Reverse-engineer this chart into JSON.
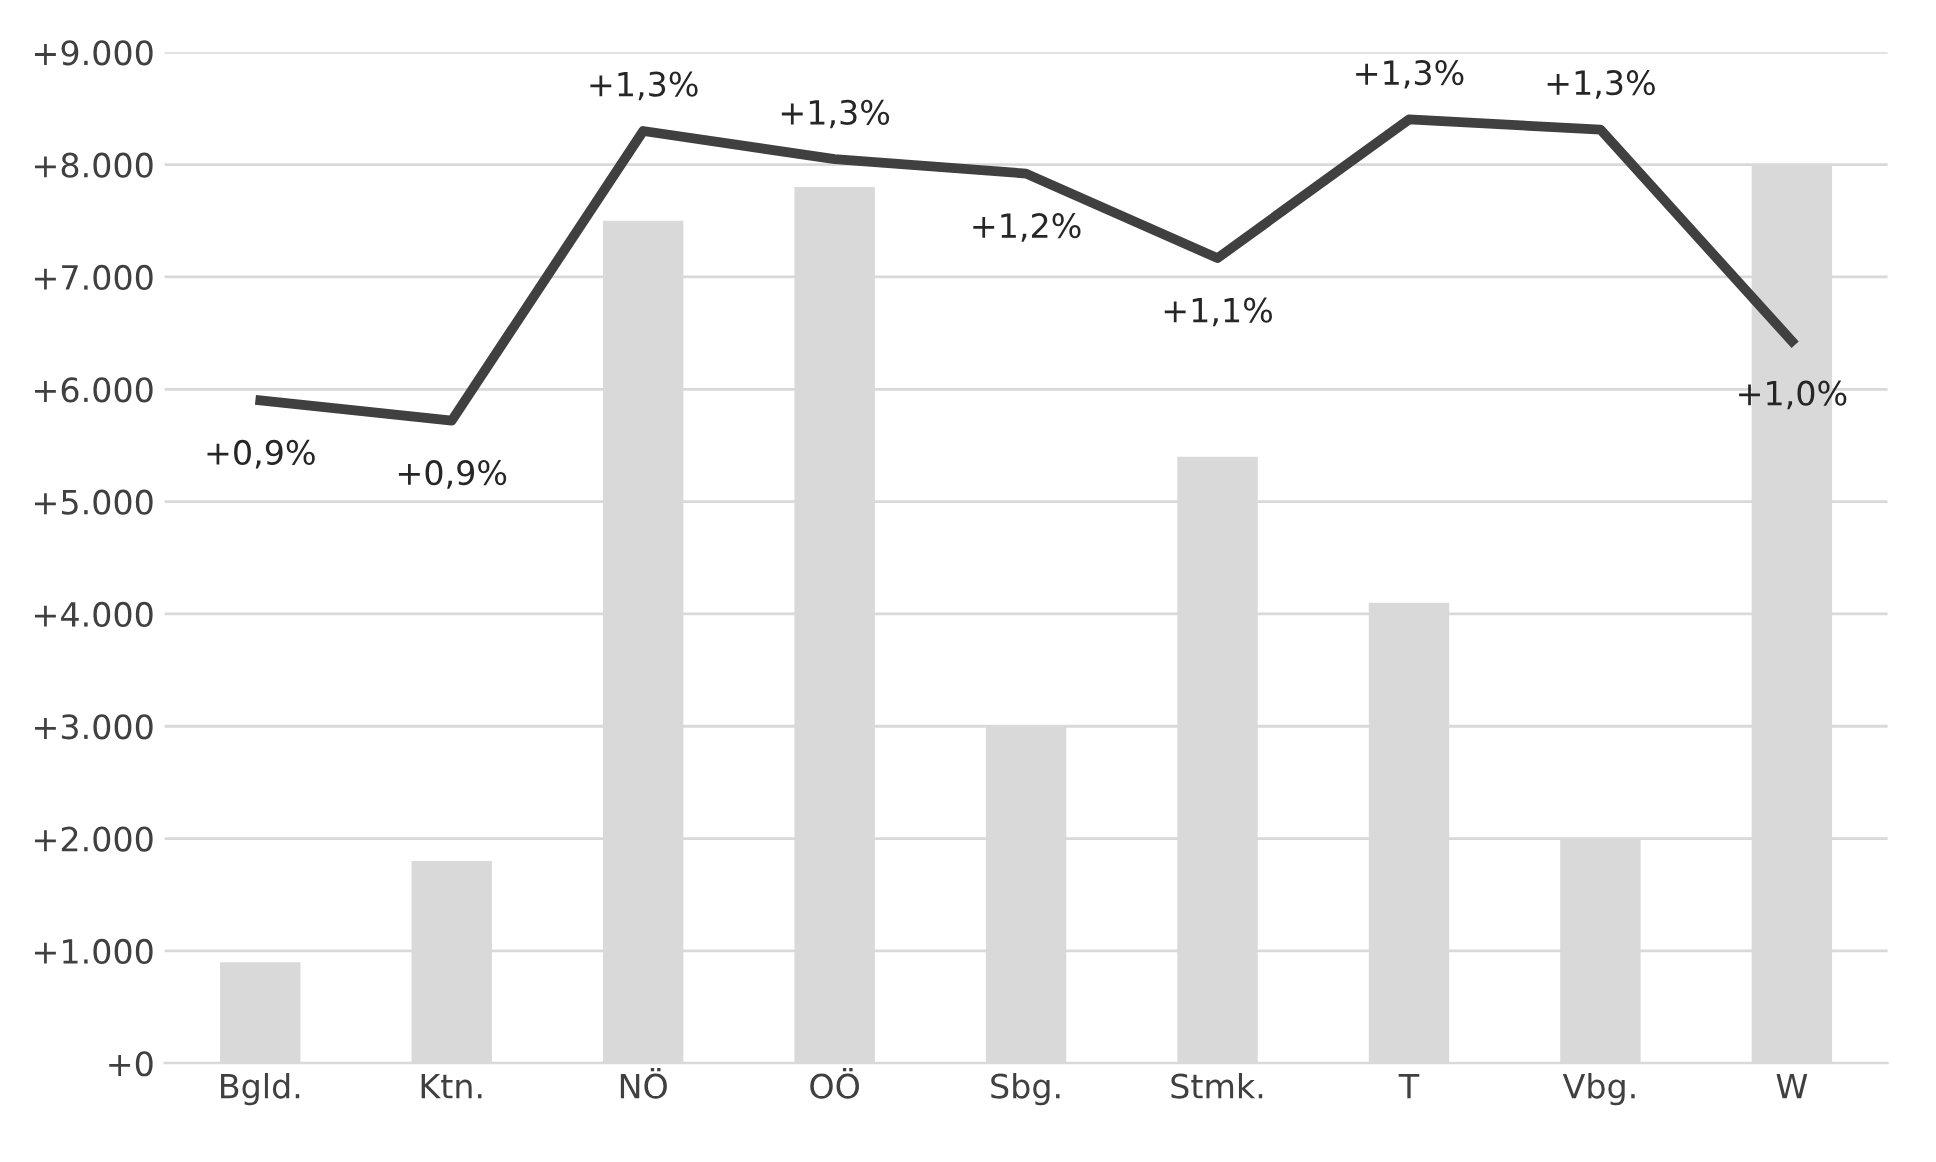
{
  "chart_data": {
    "type": "bar",
    "categories": [
      "Bgld.",
      "Ktn.",
      "NÖ",
      "OÖ",
      "Sbg.",
      "Stmk.",
      "T",
      "Vbg.",
      "W"
    ],
    "series": [
      {
        "color": "#d9d9d9",
        "values": [
          900,
          1800,
          7500,
          7800,
          3000,
          5400,
          4100,
          2000,
          8000
        ]
      },
      {
        "type": "line",
        "axis": "y2",
        "color": "#404040",
        "values": [
          0.918,
          0.89,
          1.291,
          1.252,
          1.232,
          1.115,
          1.307,
          1.293,
          1.0
        ],
        "value_labels": [
          "+0,9%",
          "+0,9%",
          "+1,3%",
          "+1,3%",
          "+1,2%",
          "+1,1%",
          "+1,3%",
          "+1,3%",
          "+1,0%"
        ]
      }
    ],
    "ylim": [
      0,
      9000
    ],
    "yticks": [
      {
        "value": 0,
        "label": "+0"
      },
      {
        "value": 1000,
        "label": "+1.000"
      },
      {
        "value": 2000,
        "label": "+2.000"
      },
      {
        "value": 3000,
        "label": "+3.000"
      },
      {
        "value": 4000,
        "label": "+4.000"
      },
      {
        "value": 5000,
        "label": "+5.000"
      },
      {
        "value": 6000,
        "label": "+6.000"
      },
      {
        "value": 7000,
        "label": "+7.000"
      },
      {
        "value": 8000,
        "label": "+8.000"
      },
      {
        "value": 9000,
        "label": "+9.000"
      }
    ],
    "y2lim": [
      0,
      1.4
    ],
    "grid": "y",
    "legend": false
  }
}
